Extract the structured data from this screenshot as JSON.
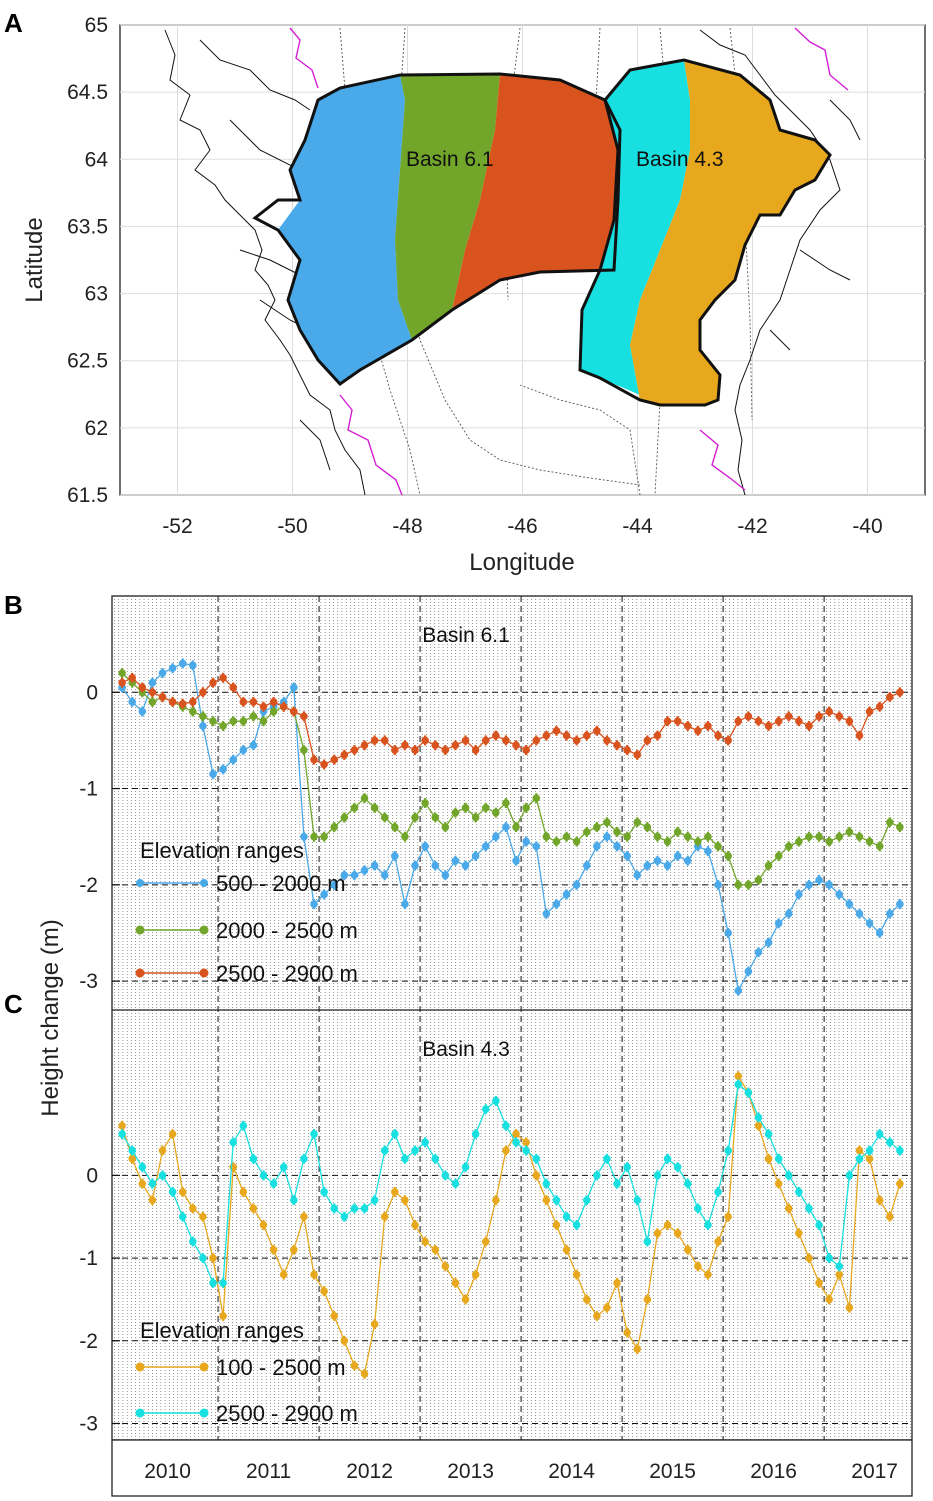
{
  "panels": {
    "a": "A",
    "b": "B",
    "c": "C"
  },
  "colors": {
    "blue": "#4aa9e8",
    "green": "#72a62b",
    "red": "#d9531e",
    "cyan": "#18e0e0",
    "orange": "#e8a81e",
    "magenta": "#d21fd2"
  },
  "chart_data": [
    {
      "id": "map",
      "type": "map",
      "xlabel": "Longitude",
      "ylabel": "Latitude",
      "xlim": [
        -53,
        -39
      ],
      "ylim": [
        61.5,
        65
      ],
      "xticks": [
        "-52",
        "-50",
        "-48",
        "-46",
        "-44",
        "-42",
        "-40"
      ],
      "yticks": [
        "61.5",
        "62",
        "62.5",
        "63",
        "63.5",
        "64",
        "64.5",
        "65"
      ],
      "labels": [
        "Basin 6.1",
        "Basin 4.3"
      ]
    },
    {
      "id": "basin61",
      "type": "line",
      "title": "Basin 6.1",
      "ylim": [
        -3.3,
        1.0
      ],
      "yticks": [
        "-3",
        "-2",
        "-1",
        "0"
      ],
      "legend_title": "Elevation ranges",
      "series": [
        {
          "name": "500 - 2000 m",
          "color": "#4aa9e8",
          "t": [
            2010.0,
            2010.1,
            2010.2,
            2010.3,
            2010.4,
            2010.5,
            2010.6,
            2010.7,
            2010.8,
            2010.9,
            2011.0,
            2011.1,
            2011.2,
            2011.3,
            2011.4,
            2011.5,
            2011.6,
            2011.7,
            2011.8,
            2011.9,
            2012.0,
            2012.1,
            2012.2,
            2012.3,
            2012.4,
            2012.5,
            2012.6,
            2012.7,
            2012.8,
            2012.9,
            2013.0,
            2013.1,
            2013.2,
            2013.3,
            2013.4,
            2013.5,
            2013.6,
            2013.7,
            2013.8,
            2013.9,
            2014.0,
            2014.1,
            2014.2,
            2014.3,
            2014.4,
            2014.5,
            2014.6,
            2014.7,
            2014.8,
            2014.9,
            2015.0,
            2015.1,
            2015.2,
            2015.3,
            2015.4,
            2015.5,
            2015.6,
            2015.7,
            2015.8,
            2015.9,
            2016.0,
            2016.1,
            2016.2,
            2016.3,
            2016.4,
            2016.5,
            2016.6,
            2016.7,
            2016.8,
            2016.9,
            2017.0,
            2017.1,
            2017.2,
            2017.3,
            2017.4,
            2017.5,
            2017.6,
            2017.7
          ],
          "values": [
            0.05,
            -0.1,
            -0.2,
            0.1,
            0.2,
            0.25,
            0.3,
            0.28,
            -0.35,
            -0.85,
            -0.8,
            -0.7,
            -0.6,
            -0.55,
            -0.2,
            -0.15,
            -0.1,
            0.05,
            -1.5,
            -2.2,
            -2.1,
            -2.0,
            -1.9,
            -1.9,
            -1.85,
            -1.8,
            -1.9,
            -1.7,
            -2.2,
            -1.8,
            -1.6,
            -1.8,
            -1.9,
            -1.75,
            -1.8,
            -1.7,
            -1.6,
            -1.5,
            -1.4,
            -1.75,
            -1.55,
            -1.6,
            -2.3,
            -2.2,
            -2.1,
            -2.0,
            -1.8,
            -1.6,
            -1.5,
            -1.6,
            -1.7,
            -1.9,
            -1.8,
            -1.75,
            -1.8,
            -1.7,
            -1.75,
            -1.6,
            -1.65,
            -2.0,
            -2.5,
            -3.1,
            -2.9,
            -2.7,
            -2.6,
            -2.4,
            -2.3,
            -2.1,
            -2.0,
            -1.95,
            -2.0,
            -2.1,
            -2.2,
            -2.3,
            -2.4,
            -2.5,
            -2.3,
            -2.2
          ]
        },
        {
          "name": "2000 - 2500 m",
          "color": "#72a62b",
          "t": [
            2010.0,
            2010.1,
            2010.2,
            2010.3,
            2010.4,
            2010.5,
            2010.6,
            2010.7,
            2010.8,
            2010.9,
            2011.0,
            2011.1,
            2011.2,
            2011.3,
            2011.4,
            2011.5,
            2011.6,
            2011.7,
            2011.8,
            2011.9,
            2012.0,
            2012.1,
            2012.2,
            2012.3,
            2012.4,
            2012.5,
            2012.6,
            2012.7,
            2012.8,
            2012.9,
            2013.0,
            2013.1,
            2013.2,
            2013.3,
            2013.4,
            2013.5,
            2013.6,
            2013.7,
            2013.8,
            2013.9,
            2014.0,
            2014.1,
            2014.2,
            2014.3,
            2014.4,
            2014.5,
            2014.6,
            2014.7,
            2014.8,
            2014.9,
            2015.0,
            2015.1,
            2015.2,
            2015.3,
            2015.4,
            2015.5,
            2015.6,
            2015.7,
            2015.8,
            2015.9,
            2016.0,
            2016.1,
            2016.2,
            2016.3,
            2016.4,
            2016.5,
            2016.6,
            2016.7,
            2016.8,
            2016.9,
            2017.0,
            2017.1,
            2017.2,
            2017.3,
            2017.4,
            2017.5,
            2017.6,
            2017.7
          ],
          "values": [
            0.2,
            0.1,
            0.0,
            -0.1,
            -0.05,
            -0.1,
            -0.15,
            -0.2,
            -0.25,
            -0.3,
            -0.35,
            -0.3,
            -0.3,
            -0.25,
            -0.3,
            -0.2,
            -0.15,
            -0.2,
            -0.6,
            -1.5,
            -1.5,
            -1.4,
            -1.3,
            -1.2,
            -1.1,
            -1.2,
            -1.3,
            -1.4,
            -1.5,
            -1.3,
            -1.15,
            -1.3,
            -1.4,
            -1.25,
            -1.2,
            -1.3,
            -1.2,
            -1.25,
            -1.15,
            -1.4,
            -1.2,
            -1.1,
            -1.5,
            -1.55,
            -1.5,
            -1.55,
            -1.45,
            -1.4,
            -1.35,
            -1.45,
            -1.5,
            -1.35,
            -1.4,
            -1.5,
            -1.55,
            -1.45,
            -1.5,
            -1.55,
            -1.5,
            -1.6,
            -1.7,
            -2.0,
            -2.0,
            -1.95,
            -1.8,
            -1.7,
            -1.6,
            -1.55,
            -1.5,
            -1.5,
            -1.55,
            -1.5,
            -1.45,
            -1.5,
            -1.55,
            -1.6,
            -1.35,
            -1.4
          ]
        },
        {
          "name": "2500 - 2900 m",
          "color": "#d9531e",
          "t": [
            2010.0,
            2010.1,
            2010.2,
            2010.3,
            2010.4,
            2010.5,
            2010.6,
            2010.7,
            2010.8,
            2010.9,
            2011.0,
            2011.1,
            2011.2,
            2011.3,
            2011.4,
            2011.5,
            2011.6,
            2011.7,
            2011.8,
            2011.9,
            2012.0,
            2012.1,
            2012.2,
            2012.3,
            2012.4,
            2012.5,
            2012.6,
            2012.7,
            2012.8,
            2012.9,
            2013.0,
            2013.1,
            2013.2,
            2013.3,
            2013.4,
            2013.5,
            2013.6,
            2013.7,
            2013.8,
            2013.9,
            2014.0,
            2014.1,
            2014.2,
            2014.3,
            2014.4,
            2014.5,
            2014.6,
            2014.7,
            2014.8,
            2014.9,
            2015.0,
            2015.1,
            2015.2,
            2015.3,
            2015.4,
            2015.5,
            2015.6,
            2015.7,
            2015.8,
            2015.9,
            2016.0,
            2016.1,
            2016.2,
            2016.3,
            2016.4,
            2016.5,
            2016.6,
            2016.7,
            2016.8,
            2016.9,
            2017.0,
            2017.1,
            2017.2,
            2017.3,
            2017.4,
            2017.5,
            2017.6,
            2017.7
          ],
          "values": [
            0.1,
            0.15,
            0.05,
            0.0,
            -0.05,
            -0.1,
            -0.12,
            -0.1,
            0.0,
            0.1,
            0.15,
            0.05,
            -0.1,
            -0.1,
            -0.15,
            -0.1,
            -0.15,
            -0.2,
            -0.25,
            -0.7,
            -0.75,
            -0.7,
            -0.65,
            -0.6,
            -0.55,
            -0.5,
            -0.5,
            -0.6,
            -0.55,
            -0.6,
            -0.5,
            -0.55,
            -0.6,
            -0.55,
            -0.5,
            -0.6,
            -0.5,
            -0.45,
            -0.5,
            -0.55,
            -0.6,
            -0.5,
            -0.45,
            -0.4,
            -0.45,
            -0.5,
            -0.45,
            -0.4,
            -0.5,
            -0.55,
            -0.6,
            -0.65,
            -0.5,
            -0.45,
            -0.3,
            -0.3,
            -0.35,
            -0.4,
            -0.35,
            -0.45,
            -0.5,
            -0.3,
            -0.25,
            -0.3,
            -0.35,
            -0.3,
            -0.25,
            -0.3,
            -0.35,
            -0.25,
            -0.2,
            -0.25,
            -0.3,
            -0.45,
            -0.2,
            -0.15,
            -0.05,
            0.0
          ]
        }
      ]
    },
    {
      "id": "basin43",
      "type": "line",
      "title": "Basin 4.3",
      "ylim": [
        -3.2,
        2.0
      ],
      "yticks": [
        "-3",
        "-2",
        "-1",
        "0"
      ],
      "legend_title": "Elevation ranges",
      "series": [
        {
          "name": "100 - 2500 m",
          "color": "#e8a81e",
          "t": [
            2010.0,
            2010.1,
            2010.2,
            2010.3,
            2010.4,
            2010.5,
            2010.6,
            2010.7,
            2010.8,
            2010.9,
            2011.0,
            2011.1,
            2011.2,
            2011.3,
            2011.4,
            2011.5,
            2011.6,
            2011.7,
            2011.8,
            2011.9,
            2012.0,
            2012.1,
            2012.2,
            2012.3,
            2012.4,
            2012.5,
            2012.6,
            2012.7,
            2012.8,
            2012.9,
            2013.0,
            2013.1,
            2013.2,
            2013.3,
            2013.4,
            2013.5,
            2013.6,
            2013.7,
            2013.8,
            2013.9,
            2014.0,
            2014.1,
            2014.2,
            2014.3,
            2014.4,
            2014.5,
            2014.6,
            2014.7,
            2014.8,
            2014.9,
            2015.0,
            2015.1,
            2015.2,
            2015.3,
            2015.4,
            2015.5,
            2015.6,
            2015.7,
            2015.8,
            2015.9,
            2016.0,
            2016.1,
            2016.2,
            2016.3,
            2016.4,
            2016.5,
            2016.6,
            2016.7,
            2016.8,
            2016.9,
            2017.0,
            2017.1,
            2017.2,
            2017.3,
            2017.4,
            2017.5,
            2017.6,
            2017.7
          ],
          "values": [
            0.6,
            0.2,
            -0.1,
            -0.3,
            0.3,
            0.5,
            -0.2,
            -0.4,
            -0.5,
            -1.0,
            -1.7,
            0.1,
            -0.2,
            -0.4,
            -0.6,
            -0.9,
            -1.2,
            -0.9,
            -0.5,
            -1.2,
            -1.4,
            -1.7,
            -2.0,
            -2.3,
            -2.4,
            -1.8,
            -0.5,
            -0.2,
            -0.3,
            -0.6,
            -0.8,
            -0.9,
            -1.1,
            -1.3,
            -1.5,
            -1.2,
            -0.8,
            -0.3,
            0.3,
            0.5,
            0.4,
            0.0,
            -0.3,
            -0.6,
            -0.9,
            -1.2,
            -1.5,
            -1.7,
            -1.6,
            -1.3,
            -1.9,
            -2.1,
            -1.5,
            -0.7,
            -0.6,
            -0.7,
            -0.9,
            -1.1,
            -1.2,
            -0.8,
            -0.5,
            1.2,
            1.0,
            0.6,
            0.2,
            -0.1,
            -0.4,
            -0.7,
            -1.0,
            -1.3,
            -1.5,
            -1.2,
            -1.6,
            0.3,
            0.2,
            -0.3,
            -0.5,
            -0.1
          ]
        },
        {
          "name": "2500 - 2900 m",
          "color": "#18e0e0",
          "t": [
            2010.0,
            2010.1,
            2010.2,
            2010.3,
            2010.4,
            2010.5,
            2010.6,
            2010.7,
            2010.8,
            2010.9,
            2011.0,
            2011.1,
            2011.2,
            2011.3,
            2011.4,
            2011.5,
            2011.6,
            2011.7,
            2011.8,
            2011.9,
            2012.0,
            2012.1,
            2012.2,
            2012.3,
            2012.4,
            2012.5,
            2012.6,
            2012.7,
            2012.8,
            2012.9,
            2013.0,
            2013.1,
            2013.2,
            2013.3,
            2013.4,
            2013.5,
            2013.6,
            2013.7,
            2013.8,
            2013.9,
            2014.0,
            2014.1,
            2014.2,
            2014.3,
            2014.4,
            2014.5,
            2014.6,
            2014.7,
            2014.8,
            2014.9,
            2015.0,
            2015.1,
            2015.2,
            2015.3,
            2015.4,
            2015.5,
            2015.6,
            2015.7,
            2015.8,
            2015.9,
            2016.0,
            2016.1,
            2016.2,
            2016.3,
            2016.4,
            2016.5,
            2016.6,
            2016.7,
            2016.8,
            2016.9,
            2017.0,
            2017.1,
            2017.2,
            2017.3,
            2017.4,
            2017.5,
            2017.6,
            2017.7
          ],
          "values": [
            0.5,
            0.3,
            0.1,
            -0.1,
            0.0,
            -0.2,
            -0.5,
            -0.8,
            -1.0,
            -1.3,
            -1.3,
            0.4,
            0.6,
            0.2,
            0.0,
            -0.1,
            0.1,
            -0.3,
            0.2,
            0.5,
            -0.2,
            -0.4,
            -0.5,
            -0.4,
            -0.4,
            -0.3,
            0.3,
            0.5,
            0.2,
            0.3,
            0.4,
            0.2,
            0.0,
            -0.1,
            0.1,
            0.5,
            0.8,
            0.9,
            0.6,
            0.4,
            0.3,
            0.2,
            -0.1,
            -0.3,
            -0.5,
            -0.6,
            -0.3,
            0.0,
            0.2,
            -0.1,
            0.1,
            -0.3,
            -0.8,
            0.0,
            0.2,
            0.1,
            -0.1,
            -0.4,
            -0.6,
            -0.2,
            0.3,
            1.1,
            1.0,
            0.7,
            0.5,
            0.2,
            0.0,
            -0.2,
            -0.4,
            -0.6,
            -1.0,
            -1.1,
            0.0,
            0.2,
            0.3,
            0.5,
            0.4,
            0.3
          ]
        }
      ]
    }
  ],
  "year_labels": [
    "2010",
    "2011",
    "2012",
    "2013",
    "2014",
    "2015",
    "2016",
    "2017"
  ],
  "bottom_ylabel": "Height change (m)"
}
